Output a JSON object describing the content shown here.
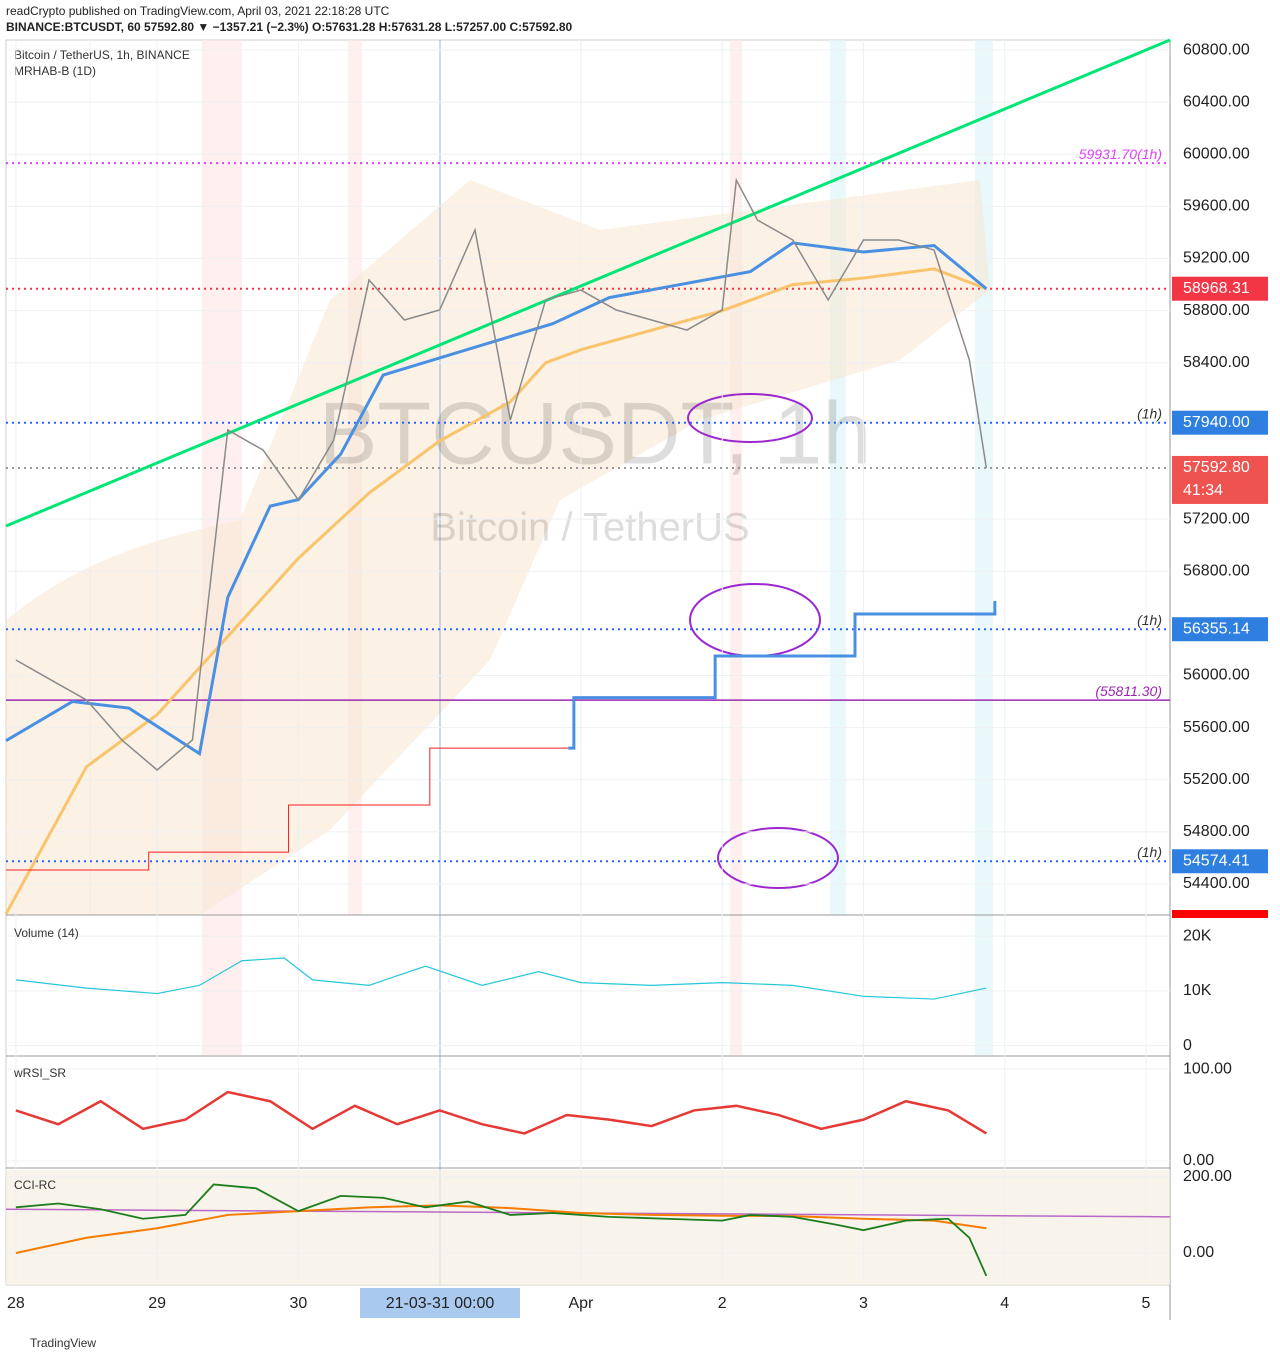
{
  "header": {
    "publisher": "readCrypto published on TradingView.com, April 03, 2021 22:18:28 UTC",
    "symbol_line": "BINANCE:BTCUSDT, 60  57592.80  ▼ −1357.21 (−2.3%)  O:57631.28  H:57631.28  L:57257.00  C:57592.80",
    "pane_title": "Bitcoin / TetherUS, 1h, BINANCE",
    "indicator": "MRHAB-B (1D)",
    "watermark": "BTCUSDT, 1h",
    "watermark_sub": "Bitcoin / TetherUS",
    "crosshair_label": "21-03-31   00:00",
    "footer": "TradingView"
  },
  "chart_data": [
    {
      "type": "line",
      "xlim": [
        -0.07,
        8.17
      ],
      "xticks": [
        {
          "value": 0,
          "label": "28"
        },
        {
          "value": 1,
          "label": "29"
        },
        {
          "value": 2,
          "label": "30"
        },
        {
          "value": 4,
          "label": "Apr"
        },
        {
          "value": 5,
          "label": "2"
        },
        {
          "value": 6,
          "label": "3"
        },
        {
          "value": 7,
          "label": "4"
        },
        {
          "value": 8,
          "label": "5"
        }
      ],
      "ylim": [
        54162,
        60877
      ],
      "yticks": [
        {
          "value": 60800,
          "label": "60800.00"
        },
        {
          "value": 60400,
          "label": "60400.00"
        },
        {
          "value": 60000,
          "label": "60000.00"
        },
        {
          "value": 59600,
          "label": "59600.00"
        },
        {
          "value": 59200,
          "label": "59200.00"
        },
        {
          "value": 58800,
          "label": "58800.00"
        },
        {
          "value": 58400,
          "label": "58400.00"
        },
        {
          "value": 57200,
          "label": "57200.00"
        },
        {
          "value": 56800,
          "label": "56800.00"
        },
        {
          "value": 56000,
          "label": "56000.00"
        },
        {
          "value": 55600,
          "label": "55600.00"
        },
        {
          "value": 55200,
          "label": "55200.00"
        },
        {
          "value": 54800,
          "label": "54800.00"
        },
        {
          "value": 54400,
          "label": "54400.00"
        }
      ],
      "levels": [
        {
          "value": 59931.7,
          "label": "59931.70(1h)",
          "color": "#e040fb",
          "style": "dotted"
        },
        {
          "value": 58968.31,
          "color": "#f23645",
          "style": "dotted"
        },
        {
          "value": 57940,
          "label": "(1h)",
          "color": "#2962ff",
          "style": "dotted"
        },
        {
          "value": 57592.8,
          "color": "#999999",
          "style": "dotted"
        },
        {
          "value": 56355.14,
          "label": "(1h)",
          "color": "#2962ff",
          "style": "dotted"
        },
        {
          "value": 55811.3,
          "label": "(55811.30)",
          "color": "#9c27b0",
          "style": "solid"
        },
        {
          "value": 54574.41,
          "label": "(1h)",
          "color": "#2962ff",
          "style": "dotted"
        }
      ],
      "axis_labels": [
        {
          "value": 58968.31,
          "label": "58968.31",
          "color": "#f23645"
        },
        {
          "value": 57940,
          "label": "57940.00",
          "color": "#2f7fe0"
        },
        {
          "value": 57592.8,
          "label": "57592.80",
          "sub": "41:34",
          "color": "#ef5350"
        },
        {
          "value": 56355.14,
          "label": "56355.14",
          "color": "#2f7fe0"
        },
        {
          "value": 54574.41,
          "label": "54574.41",
          "color": "#2f7fe0"
        }
      ],
      "series": [
        {
          "color": "#00e676",
          "width": 3,
          "x": [
            -0.07,
            8.17
          ],
          "values": [
            57147,
            60877
          ]
        },
        {
          "color": "#f9c46b",
          "width": 3,
          "x": [
            -0.07,
            0.5,
            1,
            1.5,
            2,
            2.5,
            3,
            3.5,
            3.75,
            4,
            4.5,
            5,
            5.5,
            6,
            6.5,
            6.87
          ],
          "values": [
            54170,
            55300,
            55700,
            56300,
            56900,
            57400,
            57800,
            58100,
            58400,
            58500,
            58650,
            58800,
            59000,
            59050,
            59120,
            58968
          ]
        },
        {
          "color": "#4a90e2",
          "width": 3,
          "x": [
            -0.07,
            0.4,
            0.8,
            1.3,
            1.5,
            1.8,
            2,
            2.3,
            2.6,
            3.8,
            4.2,
            5.2,
            5.5,
            6,
            6.5,
            6.87
          ],
          "values": [
            55500,
            55800,
            55750,
            55400,
            56600,
            57300,
            57350,
            57700,
            58306,
            58700,
            58900,
            59100,
            59320,
            59250,
            59300,
            58968
          ]
        },
        {
          "color": "#8a8a8a",
          "width": 1.5,
          "x": [
            0,
            0.25,
            0.5,
            0.75,
            1,
            1.25,
            1.5,
            1.75,
            2,
            2.25,
            2.5,
            2.75,
            3,
            3.25,
            3.5,
            3.75,
            4,
            4.25,
            4.5,
            4.75,
            5,
            5.1,
            5.25,
            5.5,
            5.75,
            6,
            6.25,
            6.5,
            6.75,
            6.87
          ],
          "values": [
            56119,
            55965,
            55812,
            55505,
            55275,
            55505,
            57884,
            57730,
            57347,
            57807,
            59035,
            58728,
            58805,
            59419,
            57961,
            58882,
            58958,
            58805,
            58728,
            58651,
            58805,
            59802,
            59495,
            59342,
            58882,
            59342,
            59342,
            59265,
            58421,
            57592.8
          ]
        },
        {
          "color": "#ff1f1f",
          "width": 1,
          "step": true,
          "x": [
            -0.07,
            0.94,
            1.93,
            2.93,
            3.91
          ],
          "values": [
            54507,
            54645,
            55006,
            55443,
            55443
          ]
        },
        {
          "color": "#4a90e2",
          "width": 3,
          "step": true,
          "x": [
            3.91,
            3.95,
            4.92,
            4.95,
            5.91,
            5.94,
            6.87,
            6.93
          ],
          "values": [
            55443,
            55830,
            55830,
            56150,
            56150,
            56472,
            56472,
            56572
          ]
        }
      ]
    },
    {
      "type": "line",
      "title": "Volume (14)",
      "ylim": [
        -1900,
        23300
      ],
      "yticks": [
        {
          "value": 20000,
          "label": "20K"
        },
        {
          "value": 10000,
          "label": "10K"
        },
        0
      ],
      "series": [
        {
          "color": "#26c6da",
          "width": 1.2,
          "x": [
            0,
            0.5,
            1,
            1.3,
            1.6,
            1.9,
            2.1,
            2.5,
            2.9,
            3.3,
            3.7,
            4,
            4.5,
            5,
            5.5,
            6,
            6.5,
            6.87
          ],
          "values": [
            12000,
            10500,
            9500,
            11000,
            15500,
            16000,
            12000,
            11000,
            14500,
            11000,
            13500,
            11500,
            11000,
            11500,
            11000,
            9000,
            8500,
            10500
          ]
        }
      ]
    },
    {
      "type": "line",
      "title": "wRSI_SR",
      "ylim": [
        -7.6,
        112
      ],
      "yticks": [
        {
          "value": 100,
          "label": "100.00"
        },
        {
          "value": 0,
          "label": "0.00"
        }
      ],
      "series": [
        {
          "color": "#e53935",
          "width": 2.5,
          "x": [
            0,
            0.3,
            0.6,
            0.9,
            1.2,
            1.5,
            1.8,
            2.1,
            2.4,
            2.7,
            3,
            3.3,
            3.6,
            3.9,
            4.2,
            4.5,
            4.8,
            5.1,
            5.4,
            5.7,
            6,
            6.3,
            6.6,
            6.87
          ],
          "values": [
            55,
            40,
            65,
            35,
            45,
            75,
            65,
            35,
            60,
            40,
            55,
            40,
            30,
            50,
            45,
            38,
            55,
            60,
            50,
            35,
            45,
            65,
            55,
            30
          ]
        }
      ]
    },
    {
      "type": "line",
      "title": "CCI-RC",
      "ylim": [
        -84,
        218
      ],
      "yticks": [
        {
          "value": 200,
          "label": "200.00"
        },
        {
          "value": 0,
          "label": "0.00"
        }
      ],
      "series": [
        {
          "color": "#ba68c8",
          "width": 1.5,
          "x": [
            -0.07,
            8.17
          ],
          "values": [
            115,
            95
          ]
        },
        {
          "color": "#f57c00",
          "width": 2,
          "x": [
            0,
            0.5,
            1,
            1.5,
            2,
            2.5,
            3,
            3.5,
            4,
            4.5,
            5,
            5.5,
            6,
            6.5,
            6.87
          ],
          "values": [
            0,
            40,
            65,
            100,
            110,
            120,
            125,
            118,
            105,
            100,
            98,
            97,
            90,
            85,
            65
          ]
        },
        {
          "color": "#1b7d1b",
          "width": 1.8,
          "x": [
            0,
            0.3,
            0.6,
            0.9,
            1.2,
            1.4,
            1.7,
            2,
            2.3,
            2.6,
            2.9,
            3.2,
            3.5,
            3.8,
            4.2,
            4.6,
            5,
            5.2,
            5.5,
            5.8,
            6,
            6.3,
            6.6,
            6.75,
            6.87
          ],
          "values": [
            120,
            130,
            115,
            90,
            100,
            180,
            170,
            110,
            150,
            145,
            120,
            135,
            100,
            105,
            95,
            90,
            85,
            100,
            95,
            75,
            60,
            85,
            90,
            40,
            -60
          ]
        }
      ]
    }
  ]
}
